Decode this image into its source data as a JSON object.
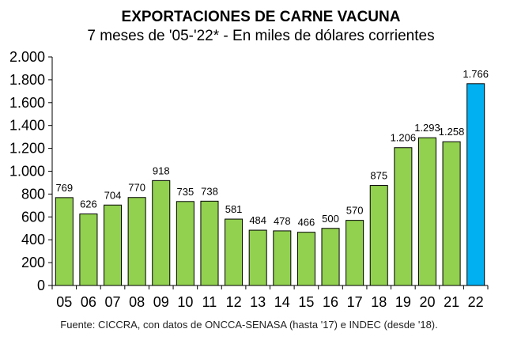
{
  "chart_data": {
    "type": "bar",
    "title": "EXPORTACIONES DE CARNE VACUNA",
    "subtitle": "7 meses de '05-'22* - En miles de dólares corrientes",
    "categories": [
      "05",
      "06",
      "07",
      "08",
      "09",
      "10",
      "11",
      "12",
      "13",
      "14",
      "15",
      "16",
      "17",
      "18",
      "19",
      "20",
      "21",
      "22"
    ],
    "values": [
      769,
      626,
      704,
      770,
      918,
      735,
      738,
      581,
      484,
      478,
      466,
      500,
      570,
      875,
      1206,
      1293,
      1258,
      1766
    ],
    "data_labels": [
      "769",
      "626",
      "704",
      "770",
      "918",
      "735",
      "738",
      "581",
      "484",
      "478",
      "466",
      "500",
      "570",
      "875",
      "1.206",
      "1.293",
      "1.258",
      "1.766"
    ],
    "ylim": [
      0,
      2000
    ],
    "yticks": [
      0,
      200,
      400,
      600,
      800,
      1000,
      1200,
      1400,
      1600,
      1800,
      2000
    ],
    "ytick_labels": [
      "0",
      "200",
      "400",
      "600",
      "800",
      "1.000",
      "1.200",
      "1.400",
      "1.600",
      "1.800",
      "2.000"
    ],
    "xlabel": "",
    "ylabel": "",
    "grid": false,
    "colors": {
      "default": "#92d050",
      "highlight": "#00b0f0",
      "border": "#000000"
    },
    "highlight_index": 17,
    "source": "Fuente: CICCRA, con datos de ONCCA-SENASA (hasta '17) e INDEC (desde '18)."
  }
}
